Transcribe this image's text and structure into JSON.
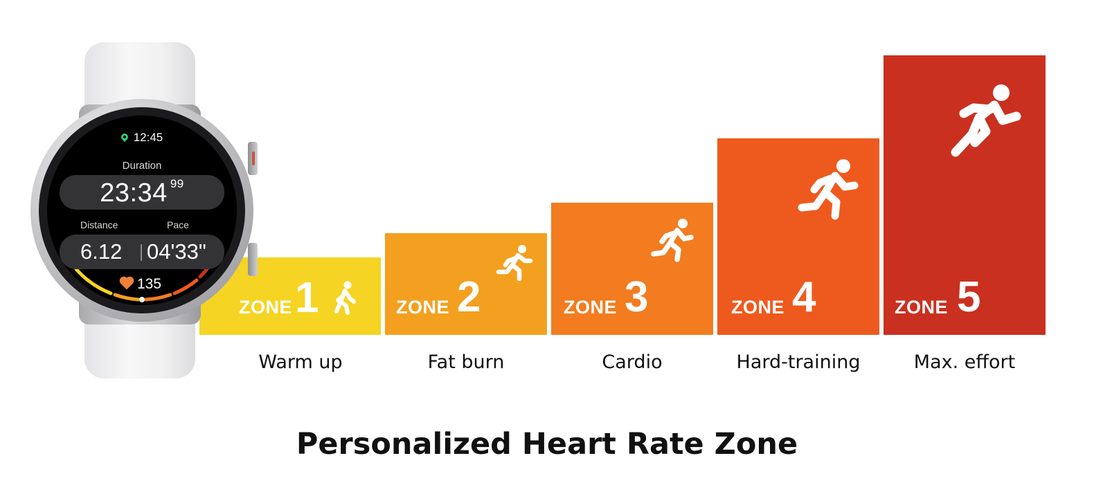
{
  "watch": {
    "time": "12:45",
    "duration_label": "Duration",
    "duration_main": "23:34",
    "duration_sub": "99",
    "distance_label": "Distance",
    "pace_label": "Pace",
    "distance": "6.12",
    "pace": "04'33\"",
    "heart_rate": "135",
    "icons": [
      "location-pin-icon",
      "heart-icon"
    ]
  },
  "zones": [
    {
      "word": "ZONE",
      "number": "1",
      "caption": "Warm up",
      "color": "#f5d423",
      "icon": "walking-person-icon"
    },
    {
      "word": "ZONE",
      "number": "2",
      "caption": "Fat burn",
      "color": "#f3a020",
      "icon": "jogging-person-icon"
    },
    {
      "word": "ZONE",
      "number": "3",
      "caption": "Cardio",
      "color": "#f27c1f",
      "icon": "running-person-icon"
    },
    {
      "word": "ZONE",
      "number": "4",
      "caption": "Hard-training",
      "color": "#ee5a1e",
      "icon": "running-person-icon"
    },
    {
      "word": "ZONE",
      "number": "5",
      "caption": "Max. effort",
      "color": "#c93020",
      "icon": "sprinting-person-icon"
    }
  ],
  "title": "Personalized Heart Rate Zone"
}
